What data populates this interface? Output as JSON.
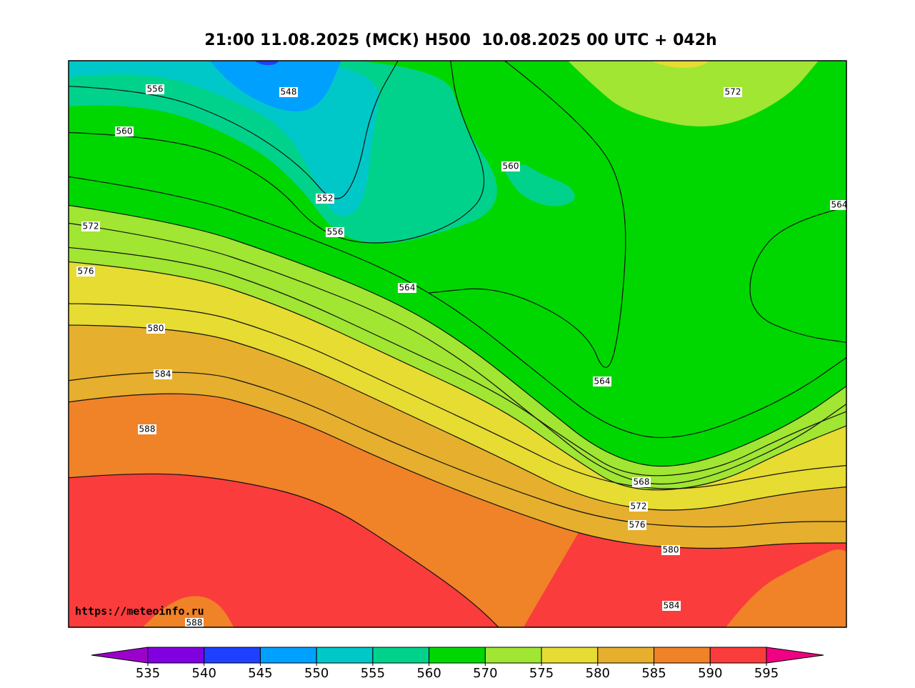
{
  "title": "21:00 11.08.2025 (МСК) H500  10.08.2025 00 UTC + 042h",
  "watermark": "https://meteoinfo.ru",
  "contour_labels": [
    556,
    548,
    560,
    572,
    560,
    552,
    556,
    564,
    572,
    576,
    564,
    580,
    584,
    564,
    588,
    568,
    572,
    576,
    580,
    584,
    588
  ],
  "colorbar": {
    "levels": [
      535,
      540,
      545,
      550,
      555,
      560,
      570,
      575,
      580,
      585,
      590,
      595
    ],
    "colors": [
      "#9c00cc",
      "#8000e0",
      "#2040ff",
      "#00a0ff",
      "#00c8c8",
      "#00d28c",
      "#00d700",
      "#a0e632",
      "#e6dc32",
      "#e6af2d",
      "#f08228",
      "#fa3c3c",
      "#f00082"
    ]
  }
}
